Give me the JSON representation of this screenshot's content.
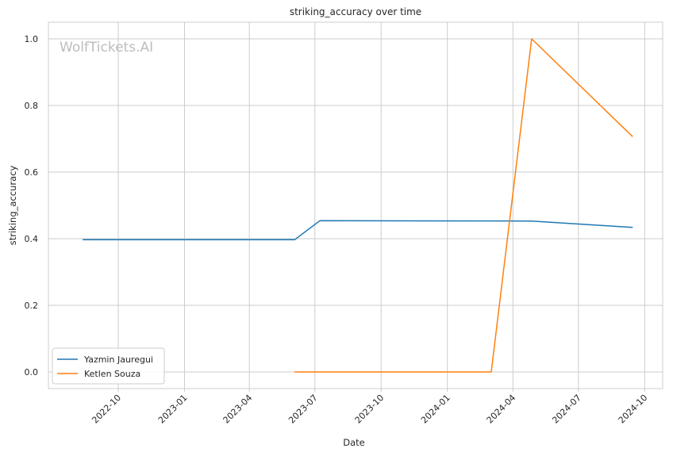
{
  "chart_data": {
    "type": "line",
    "title": "striking_accuracy over time",
    "xlabel": "Date",
    "ylabel": "striking_accuracy",
    "watermark": "WolfTickets.AI",
    "x_ticks": [
      "2022-10",
      "2023-01",
      "2023-04",
      "2023-07",
      "2023-10",
      "2024-01",
      "2024-04",
      "2024-07",
      "2024-10"
    ],
    "y_ticks": [
      "0.0",
      "0.2",
      "0.4",
      "0.6",
      "0.8",
      "1.0"
    ],
    "xlim": [
      "2022-06-26",
      "2024-10-26"
    ],
    "ylim": [
      -0.05,
      1.05
    ],
    "grid": true,
    "legend_position": "lower-left",
    "series": [
      {
        "name": "Yazmin Jauregui",
        "color": "#1f77b4",
        "points": [
          {
            "x": "2022-08-13",
            "y": 0.397
          },
          {
            "x": "2023-06-03",
            "y": 0.397
          },
          {
            "x": "2023-07-08",
            "y": 0.454
          },
          {
            "x": "2024-04-27",
            "y": 0.453
          },
          {
            "x": "2024-09-14",
            "y": 0.434
          }
        ]
      },
      {
        "name": "Ketlen Souza",
        "color": "#ff7f0e",
        "points": [
          {
            "x": "2023-06-03",
            "y": 0.0
          },
          {
            "x": "2024-03-02",
            "y": 0.0
          },
          {
            "x": "2024-04-27",
            "y": 1.0
          },
          {
            "x": "2024-09-14",
            "y": 0.707
          }
        ]
      }
    ]
  }
}
